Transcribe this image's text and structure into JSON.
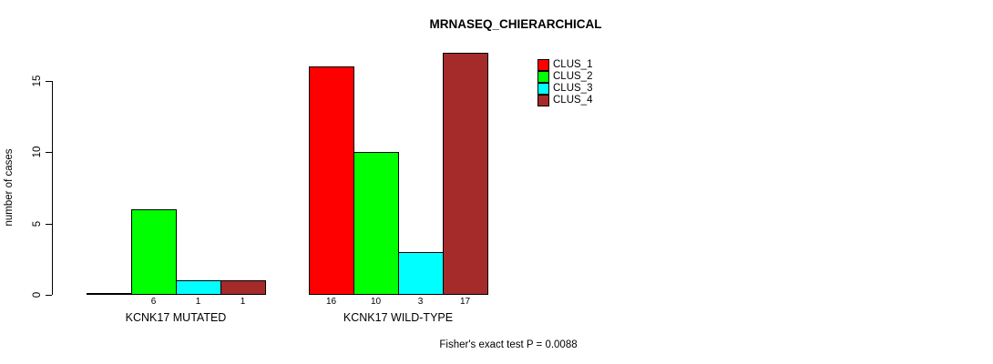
{
  "chart_data": {
    "type": "bar",
    "title": "MRNASEQ_CHIERARCHICAL",
    "ylabel": "number of cases",
    "xlabel": "",
    "yticks": [
      0,
      5,
      10,
      15
    ],
    "ylim": [
      0,
      17
    ],
    "grid": false,
    "legend_position": "top-right",
    "categories": [
      "KCNK17 MUTATED",
      "KCNK17 WILD-TYPE"
    ],
    "series": [
      {
        "name": "CLUS_1",
        "color": "#ff0000",
        "values": [
          0,
          16
        ]
      },
      {
        "name": "CLUS_2",
        "color": "#00ff00",
        "values": [
          6,
          10
        ]
      },
      {
        "name": "CLUS_3",
        "color": "#00ffff",
        "values": [
          1,
          3
        ]
      },
      {
        "name": "CLUS_4",
        "color": "#a52a2a",
        "values": [
          1,
          17
        ]
      }
    ],
    "bar_value_labels": [
      [
        "",
        "6",
        "1",
        "1"
      ],
      [
        "16",
        "10",
        "3",
        "17"
      ]
    ],
    "annotation": "Fisher's exact test P = 0.0088",
    "axis_color": "#000000",
    "text_color": "#000000",
    "background": "#ffffff"
  }
}
